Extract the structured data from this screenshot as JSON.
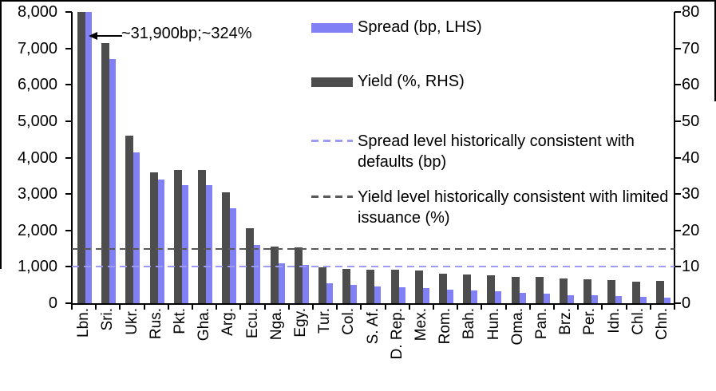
{
  "annotation": {
    "label": "~31,900bp;~324%"
  },
  "legend": {
    "items": [
      {
        "label": "Spread (bp, LHS)",
        "style": "solid",
        "color": "#8181f5"
      },
      {
        "label": "Yield (%, RHS)",
        "style": "solid",
        "color": "#4d4d4d"
      },
      {
        "label": "Spread level historically consistent with defaults (bp)",
        "style": "dashed",
        "color": "#9d9cf2"
      },
      {
        "label": "Yield level historically consistent with limited issuance (%)",
        "style": "dashed",
        "color": "#595959"
      }
    ]
  },
  "colors": {
    "spread_bar": "#8181f5",
    "yield_bar": "#4d4d4d",
    "spread_ref_line": "#9d9cf2",
    "yield_ref_line": "#595959",
    "axis": "#000000"
  },
  "chart_data": {
    "type": "bar",
    "categories": [
      "Lbn.",
      "Sri.",
      "Ukr.",
      "Rus.",
      "Pkt.",
      "Gha.",
      "Arg.",
      "Ecu.",
      "Nga.",
      "Egy.",
      "Tur.",
      "Col.",
      "S. Af.",
      "D. Rep.",
      "Mex.",
      "Rom.",
      "Bah.",
      "Hun.",
      "Oma.",
      "Pan.",
      "Brz.",
      "Per.",
      "Idn.",
      "Chl.",
      "Chn."
    ],
    "series": [
      {
        "name": "Spread (bp, LHS)",
        "axis": "left",
        "color": "#8181f5",
        "values": [
          31900,
          6700,
          4150,
          3400,
          3250,
          3250,
          2600,
          1600,
          1100,
          1050,
          550,
          500,
          460,
          440,
          420,
          380,
          350,
          330,
          280,
          270,
          230,
          210,
          200,
          170,
          160
        ]
      },
      {
        "name": "Yield (%, RHS)",
        "axis": "right",
        "color": "#4d4d4d",
        "values": [
          324,
          71.5,
          46,
          36,
          36.5,
          36.5,
          30.5,
          20.5,
          15.5,
          15.3,
          9.8,
          9.5,
          9.3,
          9.2,
          9.0,
          8.2,
          7.8,
          7.6,
          7.2,
          7.2,
          6.7,
          6.6,
          6.3,
          6.0,
          6.1
        ]
      }
    ],
    "reference_lines": [
      {
        "name": "Spread level historically consistent with defaults (bp)",
        "axis": "left",
        "value": 1000,
        "color": "#9d9cf2"
      },
      {
        "name": "Yield level historically consistent with limited issuance (%)",
        "axis": "right",
        "value": 15,
        "color": "#595959"
      }
    ],
    "left_axis": {
      "min": 0,
      "max": 8000,
      "step": 1000,
      "tick_labels": [
        "8,000",
        "7,000",
        "6,000",
        "5,000",
        "4,000",
        "3,000",
        "2,000",
        "1,000",
        "0"
      ]
    },
    "right_axis": {
      "min": 0,
      "max": 80,
      "step": 10,
      "tick_labels": [
        "80",
        "70",
        "60",
        "50",
        "40",
        "30",
        "20",
        "10",
        "0"
      ]
    },
    "annotation": "~31,900bp;~324%",
    "legend_position": "top-center",
    "grid": false,
    "title": "",
    "xlabel": "",
    "ylabel_left": "",
    "ylabel_right": ""
  }
}
